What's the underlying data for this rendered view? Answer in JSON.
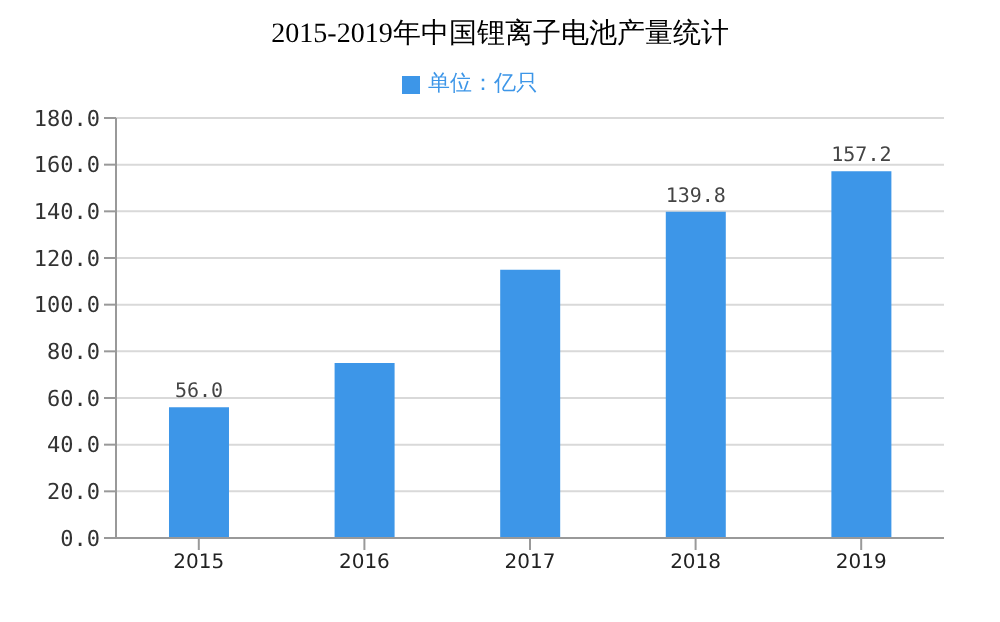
{
  "chart_data": {
    "type": "bar",
    "title": "2015-2019年中国锂离子电池产量统计",
    "categories": [
      "2015",
      "2016",
      "2017",
      "2018",
      "2019"
    ],
    "series": [
      {
        "name": "单位：亿只",
        "color": "#3d96e8",
        "values": [
          56.0,
          75,
          115,
          139.8,
          157.2
        ],
        "value_labels": [
          "56.0",
          null,
          null,
          "139.8",
          "157.2"
        ]
      }
    ],
    "ylim": [
      0,
      180
    ],
    "yticks": [
      {
        "value": 0,
        "label": "0.0"
      },
      {
        "value": 20,
        "label": "20.0"
      },
      {
        "value": 40,
        "label": "40.0"
      },
      {
        "value": 60,
        "label": "60.0"
      },
      {
        "value": 80,
        "label": "80.0"
      },
      {
        "value": 100,
        "label": "100.0"
      },
      {
        "value": 120,
        "label": "120.0"
      },
      {
        "value": 140,
        "label": "140.0"
      },
      {
        "value": 160,
        "label": "160.0"
      },
      {
        "value": 180,
        "label": "180.0"
      }
    ],
    "grid": "y",
    "legend": "top"
  }
}
